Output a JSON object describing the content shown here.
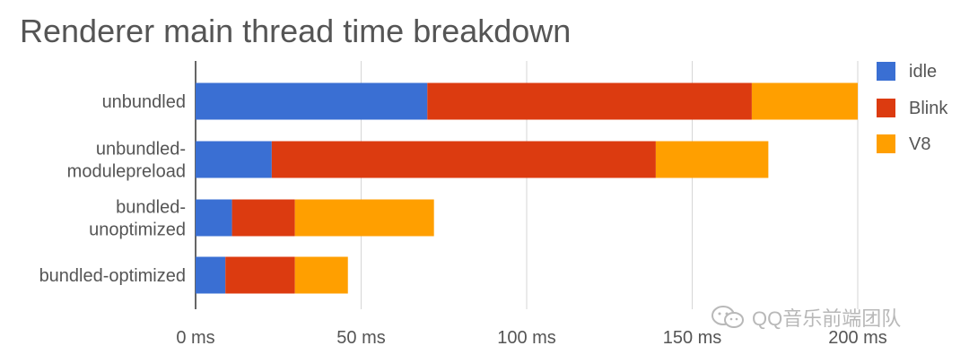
{
  "chart_data": {
    "type": "bar",
    "orientation": "horizontal",
    "stacked": true,
    "title": "Renderer main thread time breakdown",
    "categories": [
      [
        "unbundled"
      ],
      [
        "unbundled-",
        "modulepreload"
      ],
      [
        "bundled-",
        "unoptimized"
      ],
      [
        "bundled-optimized"
      ]
    ],
    "series": [
      {
        "name": "idle",
        "color": "#3a6fd3",
        "values": [
          70,
          23,
          11,
          9
        ]
      },
      {
        "name": "Blink",
        "color": "#dc3b10",
        "values": [
          98,
          116,
          19,
          21
        ]
      },
      {
        "name": "V8",
        "color": "#ff9f00",
        "values": [
          32,
          34,
          42,
          16
        ]
      }
    ],
    "xlim": [
      0,
      200
    ],
    "xticks": [
      0,
      50,
      100,
      150,
      200
    ],
    "tick_suffix": " ms",
    "grid": true,
    "legend": "right"
  },
  "watermark": {
    "text": "QQ音乐前端团队",
    "icon": "wechat-icon"
  }
}
